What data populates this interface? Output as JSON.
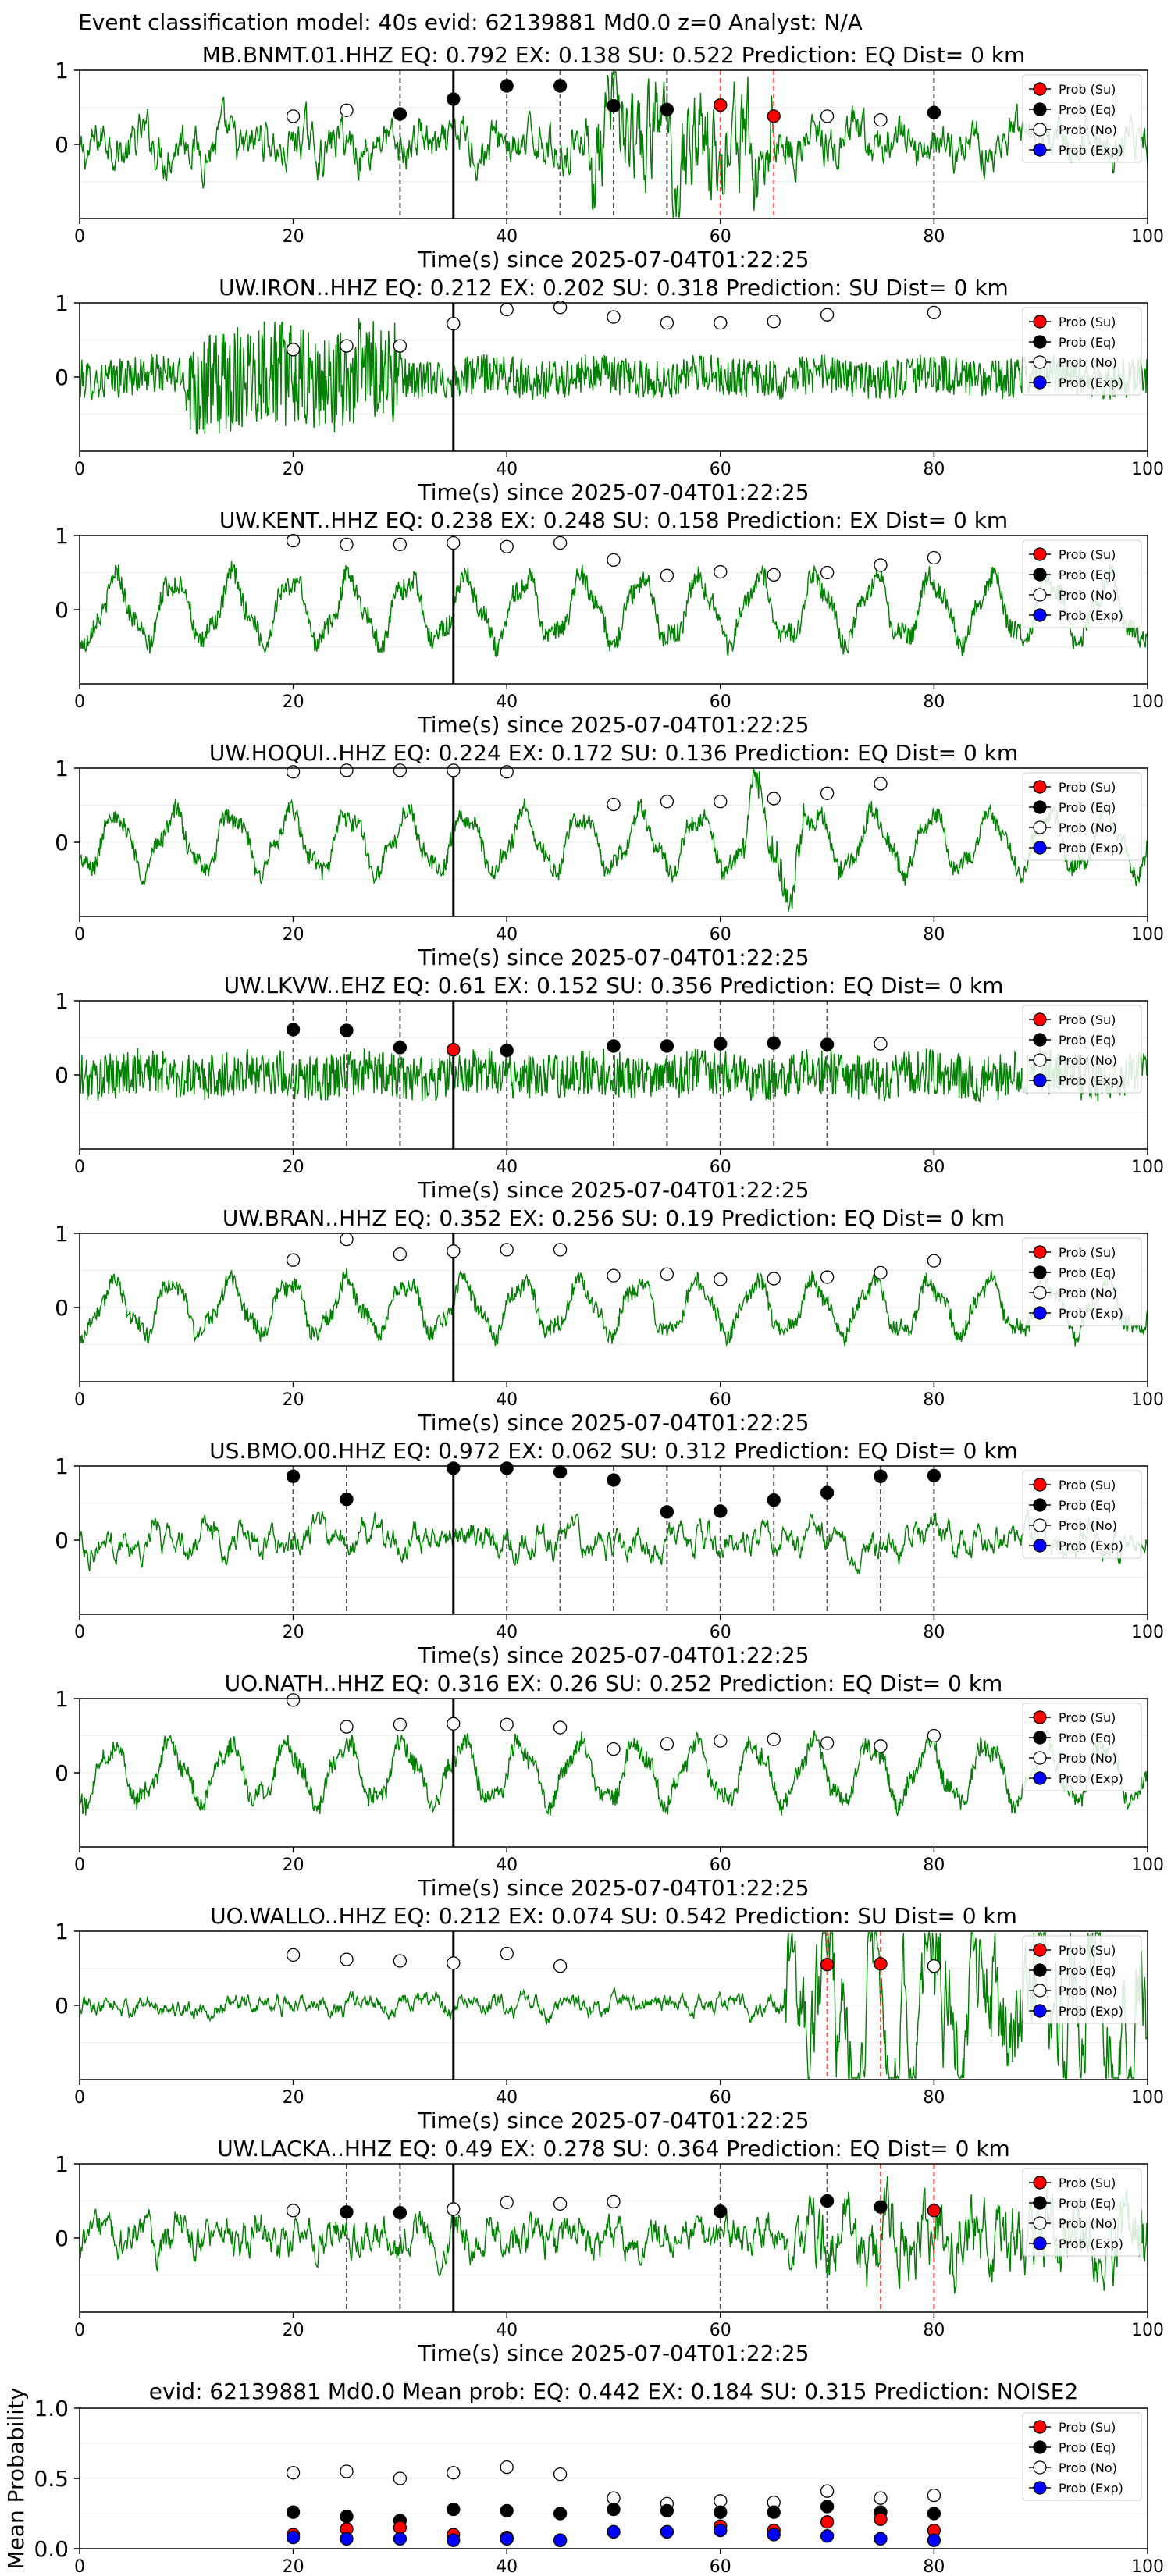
{
  "suptitle": "Event classification model: 40s evid: 62139881 Md0.0 z=0 Analyst: N/A",
  "legend": [
    "Prob (Su)",
    "Prob (Eq)",
    "Prob (No)",
    "Prob (Exp)"
  ],
  "colors": {
    "su": "#ff0000",
    "eq": "#000000",
    "no": "#ffffff",
    "exp": "#0000ff",
    "trace": "#008000",
    "vline": "#555555",
    "su_line": "#ff4d4d",
    "origin": "#000000"
  },
  "x_ticks": [
    "0",
    "20",
    "40",
    "60",
    "80",
    "100"
  ],
  "xlabel": "Time(s) since 2025-07-04T01:22:25",
  "origin_time_s": 35,
  "chart_data": [
    {
      "type": "line",
      "title": "MB.BNMT.01.HHZ   EQ: 0.792  EX: 0.138  SU: 0.522   Prediction: EQ    Dist= 0 km",
      "xlabel": "Time(s) since 2025-07-04T01:22:25",
      "xlim": [
        0,
        100
      ],
      "ylim": [
        -1,
        1
      ],
      "y_ticks": [
        "1",
        "0"
      ],
      "style": "mixed",
      "amp": 0.35,
      "burst": [
        48,
        65,
        0.9
      ],
      "points": [
        {
          "x": 20,
          "y": 0.38,
          "c": "no"
        },
        {
          "x": 25,
          "y": 0.46,
          "c": "no"
        },
        {
          "x": 30,
          "y": 0.41,
          "c": "eq",
          "line": 1
        },
        {
          "x": 35,
          "y": 0.61,
          "c": "eq"
        },
        {
          "x": 40,
          "y": 0.79,
          "c": "eq",
          "line": 1
        },
        {
          "x": 45,
          "y": 0.79,
          "c": "eq",
          "line": 1
        },
        {
          "x": 50,
          "y": 0.52,
          "c": "eq",
          "line": 1
        },
        {
          "x": 55,
          "y": 0.47,
          "c": "eq",
          "line": 1
        },
        {
          "x": 60,
          "y": 0.53,
          "c": "su",
          "line": 2
        },
        {
          "x": 65,
          "y": 0.38,
          "c": "su",
          "line": 2
        },
        {
          "x": 70,
          "y": 0.38,
          "c": "no"
        },
        {
          "x": 75,
          "y": 0.33,
          "c": "no"
        },
        {
          "x": 80,
          "y": 0.43,
          "c": "eq",
          "line": 1
        }
      ]
    },
    {
      "type": "line",
      "title": "UW.IRON..HHZ   EQ: 0.212  EX: 0.202  SU: 0.318   Prediction: SU    Dist= 0 km",
      "xlabel": "Time(s) since 2025-07-04T01:22:25",
      "xlim": [
        0,
        100
      ],
      "ylim": [
        -1,
        1
      ],
      "y_ticks": [
        "1",
        "0"
      ],
      "style": "noise",
      "amp": 0.3,
      "burst": [
        10,
        30,
        0.8
      ],
      "points": [
        {
          "x": 20,
          "y": 0.37,
          "c": "no"
        },
        {
          "x": 25,
          "y": 0.42,
          "c": "no"
        },
        {
          "x": 30,
          "y": 0.42,
          "c": "no"
        },
        {
          "x": 35,
          "y": 0.72,
          "c": "no"
        },
        {
          "x": 40,
          "y": 0.91,
          "c": "no"
        },
        {
          "x": 45,
          "y": 0.94,
          "c": "no"
        },
        {
          "x": 50,
          "y": 0.81,
          "c": "no"
        },
        {
          "x": 55,
          "y": 0.73,
          "c": "no"
        },
        {
          "x": 60,
          "y": 0.73,
          "c": "no"
        },
        {
          "x": 65,
          "y": 0.75,
          "c": "no"
        },
        {
          "x": 70,
          "y": 0.84,
          "c": "no"
        },
        {
          "x": 80,
          "y": 0.87,
          "c": "no"
        }
      ]
    },
    {
      "type": "line",
      "title": "UW.KENT..HHZ   EQ: 0.238  EX: 0.248  SU: 0.158   Prediction: EX    Dist= 0 km",
      "xlabel": "Time(s) since 2025-07-04T01:22:25",
      "xlim": [
        0,
        100
      ],
      "ylim": [
        -1,
        1
      ],
      "y_ticks": [
        "1",
        "0"
      ],
      "style": "wave",
      "amp": 0.55,
      "burst": null,
      "points": [
        {
          "x": 20,
          "y": 0.93,
          "c": "no"
        },
        {
          "x": 25,
          "y": 0.88,
          "c": "no"
        },
        {
          "x": 30,
          "y": 0.88,
          "c": "no"
        },
        {
          "x": 35,
          "y": 0.9,
          "c": "no"
        },
        {
          "x": 40,
          "y": 0.85,
          "c": "no"
        },
        {
          "x": 45,
          "y": 0.9,
          "c": "no"
        },
        {
          "x": 50,
          "y": 0.67,
          "c": "no"
        },
        {
          "x": 55,
          "y": 0.46,
          "c": "no"
        },
        {
          "x": 60,
          "y": 0.51,
          "c": "no"
        },
        {
          "x": 65,
          "y": 0.47,
          "c": "no"
        },
        {
          "x": 70,
          "y": 0.5,
          "c": "no"
        },
        {
          "x": 75,
          "y": 0.6,
          "c": "no"
        },
        {
          "x": 80,
          "y": 0.7,
          "c": "no"
        }
      ]
    },
    {
      "type": "line",
      "title": "UW.HOQUI..HHZ   EQ: 0.224  EX: 0.172  SU: 0.136   Prediction: EQ    Dist= 0 km",
      "xlabel": "Time(s) since 2025-07-04T01:22:25",
      "xlim": [
        0,
        100
      ],
      "ylim": [
        -1,
        1
      ],
      "y_ticks": [
        "1",
        "0"
      ],
      "style": "wave",
      "amp": 0.5,
      "burst": [
        62,
        68,
        0.9
      ],
      "points": [
        {
          "x": 20,
          "y": 0.95,
          "c": "no"
        },
        {
          "x": 25,
          "y": 0.97,
          "c": "no"
        },
        {
          "x": 30,
          "y": 0.97,
          "c": "no"
        },
        {
          "x": 35,
          "y": 0.97,
          "c": "no"
        },
        {
          "x": 40,
          "y": 0.95,
          "c": "no"
        },
        {
          "x": 50,
          "y": 0.51,
          "c": "no"
        },
        {
          "x": 55,
          "y": 0.55,
          "c": "no"
        },
        {
          "x": 60,
          "y": 0.55,
          "c": "no"
        },
        {
          "x": 65,
          "y": 0.59,
          "c": "no"
        },
        {
          "x": 70,
          "y": 0.66,
          "c": "no"
        },
        {
          "x": 75,
          "y": 0.79,
          "c": "no"
        }
      ]
    },
    {
      "type": "line",
      "title": "UW.LKVW..EHZ   EQ: 0.61  EX: 0.152  SU: 0.356   Prediction: EQ    Dist= 0 km",
      "xlabel": "Time(s) since 2025-07-04T01:22:25",
      "xlim": [
        0,
        100
      ],
      "ylim": [
        -1,
        1
      ],
      "y_ticks": [
        "1",
        "0"
      ],
      "style": "noise",
      "amp": 0.35,
      "burst": null,
      "points": [
        {
          "x": 20,
          "y": 0.61,
          "c": "eq",
          "line": 1
        },
        {
          "x": 25,
          "y": 0.6,
          "c": "eq",
          "line": 1
        },
        {
          "x": 30,
          "y": 0.37,
          "c": "eq",
          "line": 1
        },
        {
          "x": 35,
          "y": 0.34,
          "c": "su"
        },
        {
          "x": 40,
          "y": 0.33,
          "c": "eq",
          "line": 1
        },
        {
          "x": 50,
          "y": 0.39,
          "c": "eq",
          "line": 1
        },
        {
          "x": 55,
          "y": 0.39,
          "c": "eq",
          "line": 1
        },
        {
          "x": 60,
          "y": 0.42,
          "c": "eq",
          "line": 1
        },
        {
          "x": 65,
          "y": 0.43,
          "c": "eq",
          "line": 1
        },
        {
          "x": 70,
          "y": 0.41,
          "c": "eq",
          "line": 1
        },
        {
          "x": 75,
          "y": 0.42,
          "c": "no"
        }
      ]
    },
    {
      "type": "line",
      "title": "UW.BRAN..HHZ   EQ: 0.352  EX: 0.256  SU: 0.19   Prediction: EQ    Dist= 0 km",
      "xlabel": "Time(s) since 2025-07-04T01:22:25",
      "xlim": [
        0,
        100
      ],
      "ylim": [
        -1,
        1
      ],
      "y_ticks": [
        "1",
        "0"
      ],
      "style": "wave",
      "amp": 0.45,
      "burst": null,
      "points": [
        {
          "x": 20,
          "y": 0.64,
          "c": "no"
        },
        {
          "x": 25,
          "y": 0.92,
          "c": "no"
        },
        {
          "x": 30,
          "y": 0.72,
          "c": "no"
        },
        {
          "x": 35,
          "y": 0.76,
          "c": "no"
        },
        {
          "x": 40,
          "y": 0.78,
          "c": "no"
        },
        {
          "x": 45,
          "y": 0.78,
          "c": "no"
        },
        {
          "x": 50,
          "y": 0.43,
          "c": "no"
        },
        {
          "x": 55,
          "y": 0.45,
          "c": "no"
        },
        {
          "x": 60,
          "y": 0.38,
          "c": "no"
        },
        {
          "x": 65,
          "y": 0.39,
          "c": "no"
        },
        {
          "x": 70,
          "y": 0.41,
          "c": "no"
        },
        {
          "x": 75,
          "y": 0.47,
          "c": "no"
        },
        {
          "x": 80,
          "y": 0.63,
          "c": "no"
        }
      ]
    },
    {
      "type": "line",
      "title": "US.BMO.00.HHZ   EQ: 0.972  EX: 0.062  SU: 0.312   Prediction: EQ    Dist= 0 km",
      "xlabel": "Time(s) since 2025-07-04T01:22:25",
      "xlim": [
        0,
        100
      ],
      "ylim": [
        -1,
        1
      ],
      "y_ticks": [
        "1",
        "0"
      ],
      "style": "quiet",
      "amp": 0.18,
      "burst": null,
      "points": [
        {
          "x": 20,
          "y": 0.86,
          "c": "eq",
          "line": 1
        },
        {
          "x": 25,
          "y": 0.55,
          "c": "eq",
          "line": 1
        },
        {
          "x": 35,
          "y": 0.97,
          "c": "eq"
        },
        {
          "x": 40,
          "y": 0.97,
          "c": "eq",
          "line": 1
        },
        {
          "x": 45,
          "y": 0.92,
          "c": "eq",
          "line": 1
        },
        {
          "x": 50,
          "y": 0.81,
          "c": "eq",
          "line": 1
        },
        {
          "x": 55,
          "y": 0.38,
          "c": "eq",
          "line": 1
        },
        {
          "x": 60,
          "y": 0.39,
          "c": "eq",
          "line": 1
        },
        {
          "x": 65,
          "y": 0.54,
          "c": "eq",
          "line": 1
        },
        {
          "x": 70,
          "y": 0.64,
          "c": "eq",
          "line": 1
        },
        {
          "x": 75,
          "y": 0.86,
          "c": "eq",
          "line": 1
        },
        {
          "x": 80,
          "y": 0.87,
          "c": "eq",
          "line": 1
        }
      ]
    },
    {
      "type": "line",
      "title": "UO.NATH..HHZ   EQ: 0.316  EX: 0.26  SU: 0.252   Prediction: EQ    Dist= 0 km",
      "xlabel": "Time(s) since 2025-07-04T01:22:25",
      "xlim": [
        0,
        100
      ],
      "ylim": [
        -1,
        1
      ],
      "y_ticks": [
        "1",
        "0"
      ],
      "style": "wave",
      "amp": 0.5,
      "burst": null,
      "points": [
        {
          "x": 20,
          "y": 0.98,
          "c": "no"
        },
        {
          "x": 25,
          "y": 0.62,
          "c": "no"
        },
        {
          "x": 30,
          "y": 0.65,
          "c": "no"
        },
        {
          "x": 35,
          "y": 0.66,
          "c": "no"
        },
        {
          "x": 40,
          "y": 0.65,
          "c": "no"
        },
        {
          "x": 45,
          "y": 0.61,
          "c": "no"
        },
        {
          "x": 50,
          "y": 0.32,
          "c": "no"
        },
        {
          "x": 55,
          "y": 0.39,
          "c": "no"
        },
        {
          "x": 60,
          "y": 0.43,
          "c": "no"
        },
        {
          "x": 65,
          "y": 0.45,
          "c": "no"
        },
        {
          "x": 70,
          "y": 0.4,
          "c": "no"
        },
        {
          "x": 75,
          "y": 0.36,
          "c": "no"
        },
        {
          "x": 80,
          "y": 0.5,
          "c": "no"
        }
      ]
    },
    {
      "type": "line",
      "title": "UO.WALLO..HHZ   EQ: 0.212  EX: 0.074  SU: 0.542   Prediction: SU    Dist= 0 km",
      "xlabel": "Time(s) since 2025-07-04T01:22:25",
      "xlim": [
        0,
        100
      ],
      "ylim": [
        -1,
        1
      ],
      "y_ticks": [
        "1",
        "0"
      ],
      "style": "quiet",
      "amp": 0.12,
      "burst": [
        66,
        100,
        0.85
      ],
      "points": [
        {
          "x": 20,
          "y": 0.68,
          "c": "no"
        },
        {
          "x": 25,
          "y": 0.62,
          "c": "no"
        },
        {
          "x": 30,
          "y": 0.6,
          "c": "no"
        },
        {
          "x": 35,
          "y": 0.57,
          "c": "no"
        },
        {
          "x": 40,
          "y": 0.7,
          "c": "no"
        },
        {
          "x": 45,
          "y": 0.53,
          "c": "no"
        },
        {
          "x": 70,
          "y": 0.55,
          "c": "su",
          "line": 2
        },
        {
          "x": 75,
          "y": 0.56,
          "c": "su",
          "line": 2
        },
        {
          "x": 80,
          "y": 0.53,
          "c": "no"
        }
      ]
    },
    {
      "type": "line",
      "title": "UW.LACKA..HHZ   EQ: 0.49  EX: 0.278  SU: 0.364   Prediction: EQ    Dist= 0 km",
      "xlabel": "Time(s) since 2025-07-04T01:22:25",
      "xlim": [
        0,
        100
      ],
      "ylim": [
        -1,
        1
      ],
      "y_ticks": [
        "1",
        "0"
      ],
      "style": "mixed",
      "amp": 0.3,
      "burst": [
        68,
        100,
        0.6
      ],
      "points": [
        {
          "x": 20,
          "y": 0.37,
          "c": "no"
        },
        {
          "x": 25,
          "y": 0.35,
          "c": "eq",
          "line": 1
        },
        {
          "x": 30,
          "y": 0.34,
          "c": "eq",
          "line": 1
        },
        {
          "x": 35,
          "y": 0.39,
          "c": "no"
        },
        {
          "x": 40,
          "y": 0.48,
          "c": "no"
        },
        {
          "x": 45,
          "y": 0.46,
          "c": "no"
        },
        {
          "x": 50,
          "y": 0.49,
          "c": "no"
        },
        {
          "x": 60,
          "y": 0.36,
          "c": "eq",
          "line": 1
        },
        {
          "x": 70,
          "y": 0.5,
          "c": "eq",
          "line": 1
        },
        {
          "x": 75,
          "y": 0.42,
          "c": "eq",
          "line": 2
        },
        {
          "x": 80,
          "y": 0.37,
          "c": "su",
          "line": 2
        }
      ]
    },
    {
      "type": "scatter",
      "title": "evid: 62139881  Md0.0   Mean prob:   EQ: 0.442  EX: 0.184  SU: 0.315   Prediction: NOISE2",
      "xlabel": "",
      "ylabel": "Mean Probability",
      "xlim": [
        0,
        100
      ],
      "ylim": [
        0,
        1
      ],
      "y_ticks": [
        "1.0",
        "0.5",
        "0.0"
      ],
      "x": [
        20,
        25,
        30,
        35,
        40,
        45,
        50,
        55,
        60,
        65,
        70,
        75,
        80
      ],
      "series": [
        {
          "name": "Prob (No)",
          "c": "no",
          "values": [
            0.54,
            0.55,
            0.5,
            0.54,
            0.58,
            0.53,
            0.36,
            0.32,
            0.34,
            0.33,
            0.41,
            0.36,
            0.38
          ]
        },
        {
          "name": "Prob (Eq)",
          "c": "eq",
          "values": [
            0.26,
            0.23,
            0.2,
            0.28,
            0.27,
            0.25,
            0.28,
            0.27,
            0.26,
            0.26,
            0.3,
            0.26,
            0.25
          ]
        },
        {
          "name": "Prob (Su)",
          "c": "su",
          "values": [
            0.1,
            0.14,
            0.15,
            0.1,
            0.08,
            0.06,
            0.12,
            0.12,
            0.16,
            0.13,
            0.19,
            0.21,
            0.13
          ]
        },
        {
          "name": "Prob (Exp)",
          "c": "exp",
          "values": [
            0.08,
            0.07,
            0.07,
            0.06,
            0.07,
            0.06,
            0.12,
            0.12,
            0.13,
            0.1,
            0.09,
            0.07,
            0.06
          ]
        }
      ]
    }
  ]
}
